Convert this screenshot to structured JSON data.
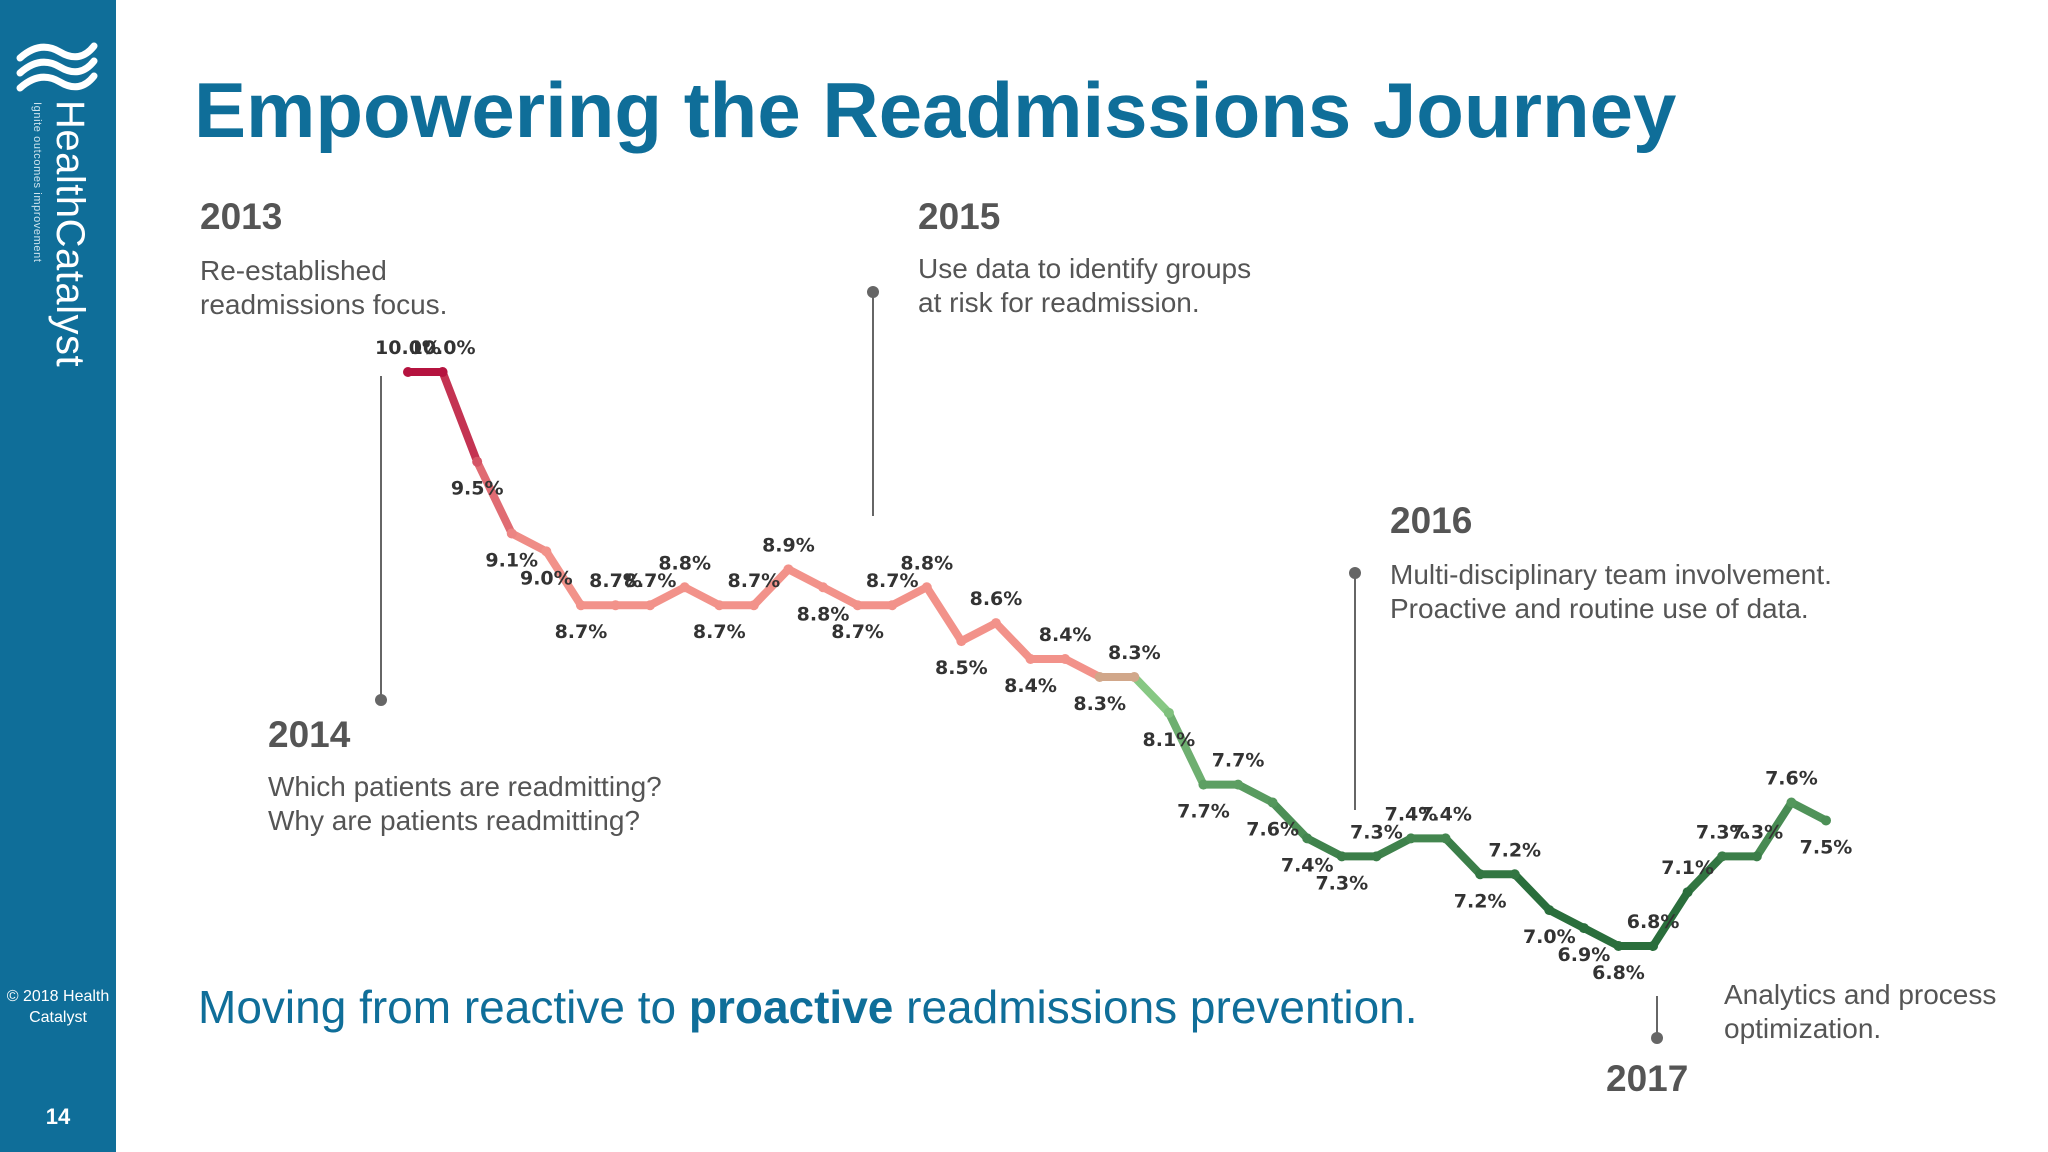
{
  "brand": {
    "name": "HealthCatalyst",
    "tagline": "Ignite outcomes improvement",
    "copyright": "© 2018 Health Catalyst",
    "brand_color": "#0f6e99"
  },
  "slide": {
    "title": "Empowering the Readmissions Journey",
    "page_number": "14",
    "tagline_pre": "Moving from reactive to ",
    "tagline_bold": "proactive",
    "tagline_post": " readmissions prevention."
  },
  "annotations": [
    {
      "year": "2013",
      "line1": "Re-established",
      "line2": "readmissions focus."
    },
    {
      "year": "2014",
      "line1": "Which patients are readmitting?",
      "line2": "Why are patients readmitting?"
    },
    {
      "year": "2015",
      "line1": "Use data to identify groups",
      "line2": "at risk for readmission."
    },
    {
      "year": "2016",
      "line1": "Multi-disciplinary team involvement.",
      "line2": "Proactive and routine use of data."
    },
    {
      "year": "2017",
      "line1": "Analytics and process",
      "line2": "optimization."
    }
  ],
  "chart_data": {
    "type": "line",
    "title": "",
    "xlabel": "",
    "ylabel": "",
    "ylim": [
      6.8,
      10.0
    ],
    "grid": false,
    "legend": "none",
    "unit": "%",
    "colors": {
      "high": "#b5133f",
      "mid": "#f2928a",
      "transition": "#90d08a",
      "low": "#2a6e3c"
    },
    "series": [
      {
        "values": [
          10.0,
          10.0,
          9.5,
          9.1,
          9.0,
          8.7,
          8.7,
          8.7,
          8.8,
          8.7,
          8.7,
          8.9,
          8.8,
          8.7,
          8.7,
          8.8,
          8.5,
          8.6,
          8.4,
          8.4,
          8.3,
          8.3,
          8.1,
          7.7,
          7.7,
          7.6,
          7.4,
          7.3,
          7.3,
          7.4,
          7.4,
          7.2,
          7.2,
          7.0,
          6.9,
          6.8,
          6.8,
          7.1,
          7.3,
          7.3,
          7.6,
          7.5
        ]
      }
    ]
  }
}
